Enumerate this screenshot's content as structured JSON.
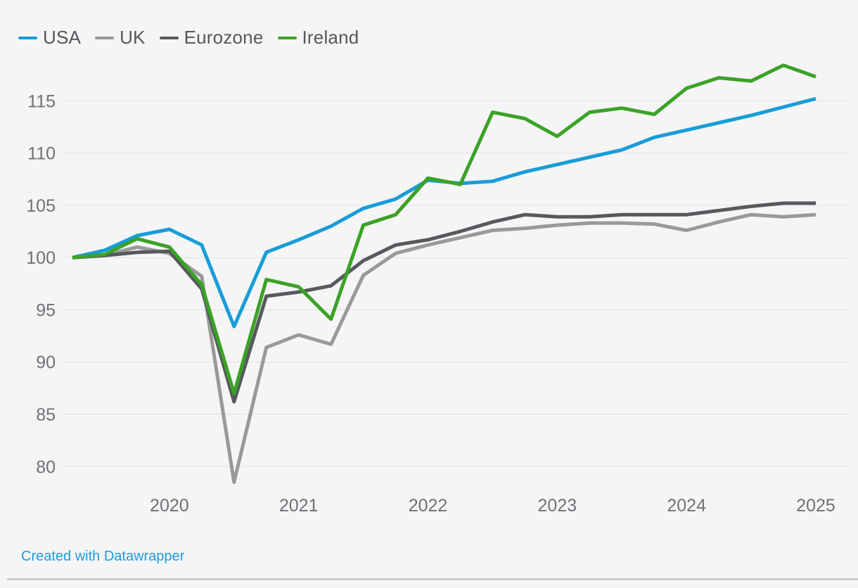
{
  "page": {
    "background": "#f5f5f6"
  },
  "footer": {
    "credit_label": "Created with Datawrapper"
  },
  "chart_data": {
    "type": "line",
    "title": "",
    "xlabel": "",
    "ylabel": "",
    "grid": "horizontal",
    "legend_position": "top-left",
    "ylim": [
      77,
      120
    ],
    "y_ticks": [
      80,
      85,
      90,
      95,
      100,
      105,
      110,
      115
    ],
    "x_tick_labels": [
      "2020",
      "2021",
      "2022",
      "2023",
      "2024",
      "2025"
    ],
    "x": [
      "2019-Q1",
      "2019-Q2",
      "2019-Q3",
      "2019-Q4",
      "2020-Q1",
      "2020-Q2",
      "2020-Q3",
      "2020-Q4",
      "2021-Q1",
      "2021-Q2",
      "2021-Q3",
      "2021-Q4",
      "2022-Q1",
      "2022-Q2",
      "2022-Q3",
      "2022-Q4",
      "2023-Q1",
      "2023-Q2",
      "2023-Q3",
      "2023-Q4",
      "2024-Q1",
      "2024-Q2",
      "2024-Q3",
      "2024-Q4"
    ],
    "series": [
      {
        "name": "USA",
        "color": "#189cd8",
        "values": [
          100,
          100.7,
          102.1,
          102.7,
          101.2,
          93.4,
          100.5,
          101.7,
          103.0,
          104.7,
          105.6,
          107.4,
          107.1,
          107.3,
          108.2,
          108.9,
          109.6,
          110.3,
          111.5,
          112.2,
          112.9,
          113.6,
          114.4,
          115.2
        ]
      },
      {
        "name": "UK",
        "color": "#999999",
        "values": [
          100,
          100.2,
          101.0,
          100.4,
          98.2,
          78.5,
          91.4,
          92.6,
          91.7,
          98.3,
          100.4,
          101.2,
          101.9,
          102.6,
          102.8,
          103.1,
          103.3,
          103.3,
          103.2,
          102.6,
          103.4,
          104.1,
          103.9,
          104.1
        ]
      },
      {
        "name": "Eurozone",
        "color": "#56595d",
        "values": [
          100,
          100.2,
          100.5,
          100.6,
          97.0,
          86.2,
          96.3,
          96.7,
          97.3,
          99.7,
          101.2,
          101.7,
          102.5,
          103.4,
          104.1,
          103.9,
          103.9,
          104.1,
          104.1,
          104.1,
          104.5,
          104.9,
          105.2,
          105.2
        ]
      },
      {
        "name": "Ireland",
        "color": "#3ba226",
        "values": [
          100,
          100.3,
          101.8,
          101.0,
          97.4,
          87.0,
          97.9,
          97.2,
          94.1,
          103.1,
          104.1,
          107.6,
          107.0,
          113.9,
          113.3,
          111.6,
          113.9,
          114.3,
          113.7,
          116.2,
          117.2,
          116.9,
          118.4,
          117.3
        ]
      }
    ]
  }
}
